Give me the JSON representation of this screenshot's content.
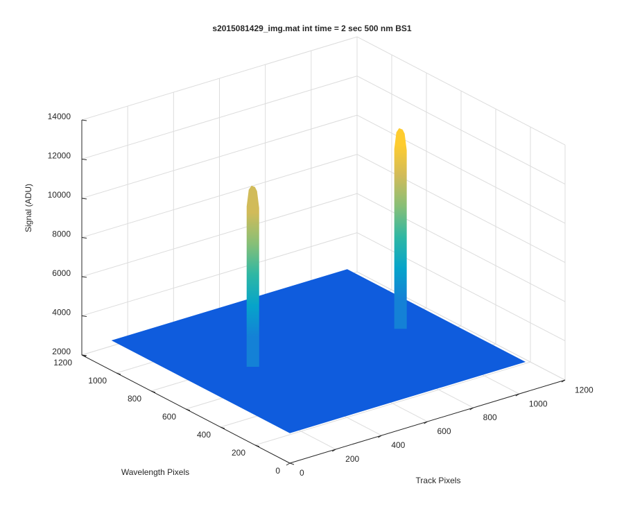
{
  "chart_data": {
    "type": "surface",
    "title": "s2015081429_img.mat int time = 2 sec  500 nm BS1",
    "xlabel": "Track Pixels",
    "ylabel": "Wavelength Pixels",
    "zlabel": "Signal (ADU)",
    "xlim": [
      0,
      1200
    ],
    "xticks": [
      0,
      200,
      400,
      600,
      800,
      1000,
      1200
    ],
    "ylim": [
      0,
      1200
    ],
    "yticks": [
      0,
      200,
      400,
      600,
      800,
      1000,
      1200
    ],
    "zlim": [
      2000,
      14000
    ],
    "zticks": [
      2000,
      4000,
      6000,
      8000,
      10000,
      12000,
      14000
    ],
    "grid": true,
    "x": [
      0,
      1024
    ],
    "y": [
      0,
      1024
    ],
    "base_level": 3550,
    "peaks": [
      {
        "x": 300,
        "y": 610,
        "z": 12300
      },
      {
        "x": 908,
        "y": 563,
        "z": 13300
      }
    ],
    "colormap": [
      "#352a87",
      "#0f5cdd",
      "#1481d6",
      "#06a4ca",
      "#2eb7a4",
      "#87bf77",
      "#d1bb59",
      "#fecc2f",
      "#f9fb0e"
    ]
  }
}
